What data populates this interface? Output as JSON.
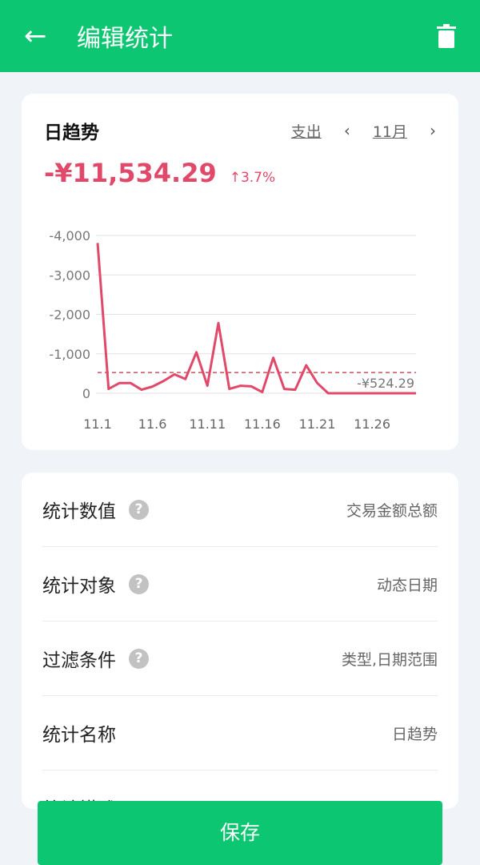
{
  "appbar": {
    "title": "编辑统计",
    "back_icon": "arrow-left-icon",
    "delete_icon": "trash-icon"
  },
  "card": {
    "title": "日趋势",
    "type_label": "支出",
    "month_label": "11月",
    "total": "-¥11,534.29",
    "change": "↑3.7%"
  },
  "colors": {
    "accent": "#0cc672",
    "series": "#e0496a"
  },
  "chart_data": {
    "type": "line",
    "categories": [
      "11.1",
      "11.2",
      "11.3",
      "11.4",
      "11.5",
      "11.6",
      "11.7",
      "11.8",
      "11.9",
      "11.10",
      "11.11",
      "11.12",
      "11.13",
      "11.14",
      "11.15",
      "11.16",
      "11.17",
      "11.18",
      "11.19",
      "11.20",
      "11.21",
      "11.22",
      "11.23",
      "11.24",
      "11.25",
      "11.26",
      "11.27",
      "11.28",
      "11.29",
      "11.30"
    ],
    "x_tick_labels": [
      "11.1",
      "11.6",
      "11.11",
      "11.16",
      "11.21",
      "11.26"
    ],
    "values": [
      -3810,
      -110,
      -260,
      -260,
      -90,
      -170,
      -310,
      -480,
      -360,
      -1040,
      -190,
      -1780,
      -110,
      -190,
      -175,
      -30,
      -900,
      -110,
      -90,
      -710,
      -260,
      0,
      0,
      0,
      0,
      0,
      0,
      0,
      0,
      0
    ],
    "y_tick_labels": [
      "-4,000",
      "-3,000",
      "-2,000",
      "-1,000",
      "0"
    ],
    "ylim": [
      0,
      -4000
    ],
    "average": -524.29,
    "average_label": "-¥524.29",
    "grid": true
  },
  "settings": [
    {
      "label": "统计数值",
      "help": true,
      "value": "交易金额总额"
    },
    {
      "label": "统计对象",
      "help": true,
      "value": "动态日期"
    },
    {
      "label": "过滤条件",
      "help": true,
      "value": "类型,日期范围"
    },
    {
      "label": "统计名称",
      "help": false,
      "value": "日趋势"
    },
    {
      "label": "统计描述",
      "help": false,
      "value": ""
    }
  ],
  "help_glyph": "?",
  "save_label": "保存"
}
